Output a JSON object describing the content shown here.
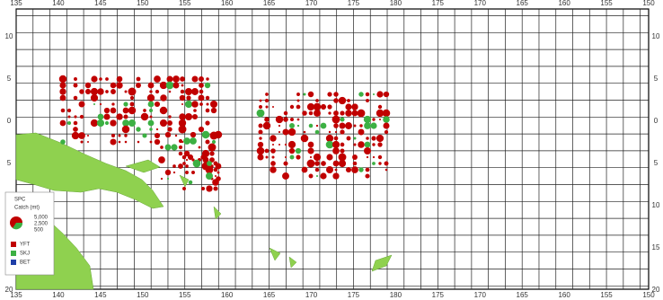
{
  "map": {
    "lon_labels": [
      "135",
      "140",
      "145",
      "150",
      "155",
      "160",
      "165",
      "170",
      "175",
      "180",
      "175",
      "170",
      "165",
      "160",
      "155",
      "150"
    ],
    "lat_labels": [
      "10",
      "5",
      "0",
      "5",
      "10",
      "15",
      "20"
    ],
    "legend": {
      "title": "SPC",
      "subtitle": "Catch (mt)",
      "sizes": [
        "5,000",
        "2,500",
        "500"
      ],
      "items": [
        {
          "label": "YFT",
          "color": "#c00000"
        },
        {
          "label": "SKJ",
          "color": "#3cb043"
        },
        {
          "label": "BET",
          "color": "#1f3fa8"
        }
      ]
    }
  }
}
